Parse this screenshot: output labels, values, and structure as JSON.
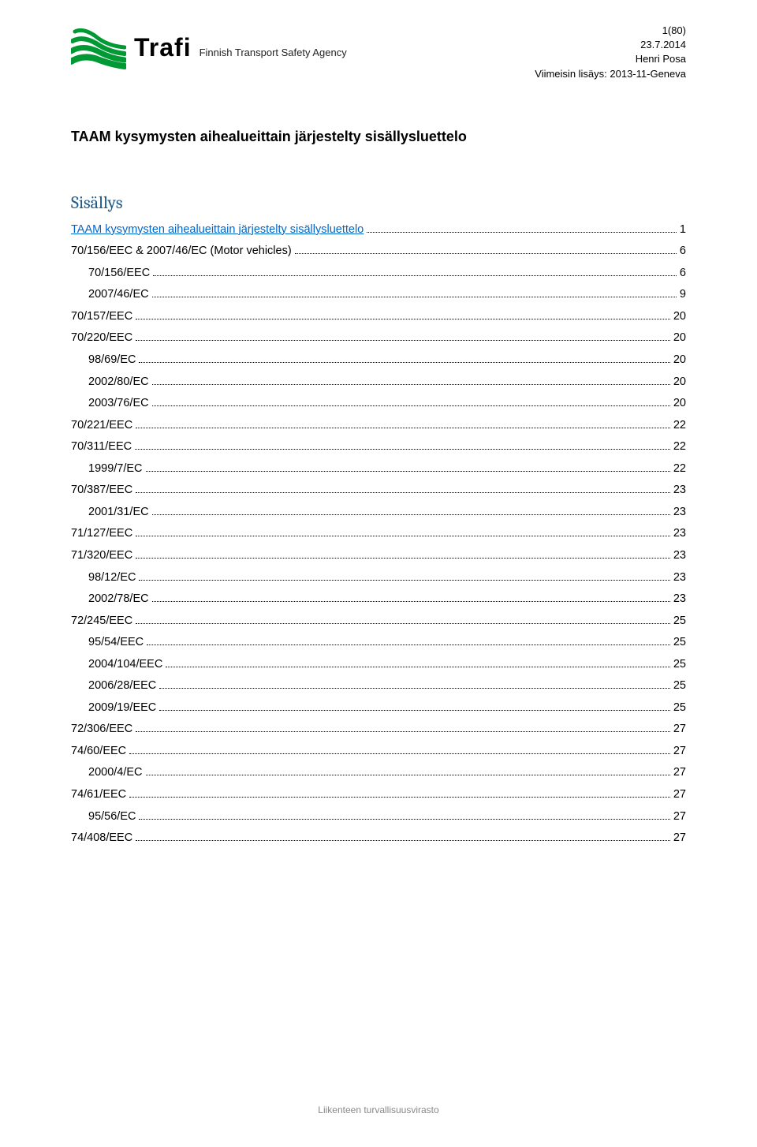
{
  "header": {
    "logo_name": "Trafi",
    "logo_tagline": "Finnish Transport Safety Agency",
    "page_indicator": "1(80)",
    "date": "23.7.2014",
    "author": "Henri Posa",
    "revision": "Viimeisin lisäys: 2013-11-Geneva"
  },
  "title": "TAAM kysymysten aihealueittain järjestelty sisällysluettelo",
  "toc_heading": "Sisällys",
  "toc": [
    {
      "level": 1,
      "label": "TAAM kysymysten aihealueittain järjestelty sisällysluettelo",
      "page": "1",
      "link": true
    },
    {
      "level": 1,
      "label": "70/156/EEC & 2007/46/EC (Motor vehicles)",
      "page": "6",
      "link": false
    },
    {
      "level": 2,
      "label": "70/156/EEC",
      "page": "6",
      "link": false
    },
    {
      "level": 2,
      "label": "2007/46/EC",
      "page": "9",
      "link": false
    },
    {
      "level": 1,
      "label": "70/157/EEC",
      "page": "20",
      "link": false
    },
    {
      "level": 1,
      "label": "70/220/EEC",
      "page": "20",
      "link": false
    },
    {
      "level": 2,
      "label": "98/69/EC",
      "page": "20",
      "link": false
    },
    {
      "level": 2,
      "label": "2002/80/EC",
      "page": "20",
      "link": false
    },
    {
      "level": 2,
      "label": "2003/76/EC",
      "page": "20",
      "link": false
    },
    {
      "level": 1,
      "label": "70/221/EEC",
      "page": "22",
      "link": false
    },
    {
      "level": 1,
      "label": "70/311/EEC",
      "page": "22",
      "link": false
    },
    {
      "level": 2,
      "label": "1999/7/EC",
      "page": "22",
      "link": false
    },
    {
      "level": 1,
      "label": "70/387/EEC",
      "page": "23",
      "link": false
    },
    {
      "level": 2,
      "label": "2001/31/EC",
      "page": "23",
      "link": false
    },
    {
      "level": 1,
      "label": "71/127/EEC",
      "page": "23",
      "link": false
    },
    {
      "level": 1,
      "label": "71/320/EEC",
      "page": "23",
      "link": false
    },
    {
      "level": 2,
      "label": "98/12/EC",
      "page": "23",
      "link": false
    },
    {
      "level": 2,
      "label": "2002/78/EC",
      "page": "23",
      "link": false
    },
    {
      "level": 1,
      "label": "72/245/EEC",
      "page": "25",
      "link": false
    },
    {
      "level": 2,
      "label": "95/54/EEC",
      "page": "25",
      "link": false
    },
    {
      "level": 2,
      "label": "2004/104/EEC",
      "page": "25",
      "link": false
    },
    {
      "level": 2,
      "label": "2006/28/EEC",
      "page": "25",
      "link": false
    },
    {
      "level": 2,
      "label": "2009/19/EEC",
      "page": "25",
      "link": false
    },
    {
      "level": 1,
      "label": "72/306/EEC",
      "page": "27",
      "link": false
    },
    {
      "level": 1,
      "label": "74/60/EEC",
      "page": "27",
      "link": false
    },
    {
      "level": 2,
      "label": "2000/4/EC",
      "page": "27",
      "link": false
    },
    {
      "level": 1,
      "label": "74/61/EEC",
      "page": "27",
      "link": false
    },
    {
      "level": 2,
      "label": "95/56/EC",
      "page": "27",
      "link": false
    },
    {
      "level": 1,
      "label": "74/408/EEC",
      "page": "27",
      "link": false
    }
  ],
  "footer": "Liikenteen turvallisuusvirasto",
  "colors": {
    "heading": "#1f5a8a",
    "link": "#0066cc",
    "logo_green": "#009933",
    "footer_text": "#888888",
    "body_text": "#000000",
    "background": "#ffffff"
  },
  "typography": {
    "body_font": "Verdana",
    "heading_font": "Cambria",
    "title_size_pt": 14,
    "body_size_pt": 11,
    "heading_size_pt": 17
  }
}
